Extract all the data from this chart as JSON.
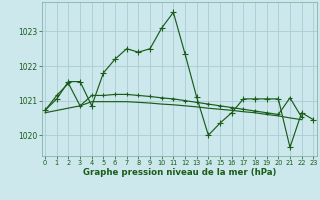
{
  "title": "Graphe pression niveau de la mer (hPa)",
  "background_color": "#cce8ec",
  "grid_color": "#aaccd4",
  "line_color": "#1a5c1a",
  "x_ticks": [
    0,
    1,
    2,
    3,
    4,
    5,
    6,
    7,
    8,
    9,
    10,
    11,
    12,
    13,
    14,
    15,
    16,
    17,
    18,
    19,
    20,
    21,
    22,
    23
  ],
  "y_ticks": [
    1020,
    1021,
    1022,
    1023
  ],
  "ylim": [
    1019.4,
    1023.85
  ],
  "xlim": [
    -0.3,
    23.3
  ],
  "series1_x": [
    0,
    1,
    2,
    3,
    4,
    5,
    6,
    7,
    8,
    9,
    10,
    11,
    12,
    13,
    14,
    15,
    16,
    17,
    18,
    19,
    20,
    21,
    22,
    23
  ],
  "series1_y": [
    1020.72,
    1021.05,
    1021.55,
    1021.55,
    1020.85,
    1021.8,
    1022.2,
    1022.5,
    1022.4,
    1022.5,
    1023.1,
    1023.55,
    1022.35,
    1021.1,
    1020.0,
    1020.35,
    1020.65,
    1021.05,
    1021.05,
    1021.05,
    1021.05,
    1019.65,
    1020.65,
    1020.45
  ],
  "series2_x": [
    0,
    1,
    2,
    3,
    4,
    5,
    6,
    7,
    8,
    9,
    10,
    11,
    12,
    13,
    14,
    15,
    16,
    17,
    18,
    19,
    20,
    21,
    22
  ],
  "series2_y": [
    1020.72,
    1021.15,
    1021.5,
    1020.85,
    1021.15,
    1021.15,
    1021.18,
    1021.18,
    1021.15,
    1021.12,
    1021.08,
    1021.05,
    1021.0,
    1020.95,
    1020.9,
    1020.85,
    1020.8,
    1020.75,
    1020.7,
    1020.65,
    1020.6,
    1021.08,
    1020.52
  ],
  "series3_x": [
    0,
    3,
    4,
    5,
    6,
    7,
    8,
    9,
    10,
    11,
    12,
    13,
    14,
    15,
    16,
    17,
    18,
    19,
    20,
    21,
    22
  ],
  "series3_y": [
    1020.65,
    1020.85,
    1020.97,
    1020.97,
    1020.97,
    1020.97,
    1020.95,
    1020.93,
    1020.9,
    1020.88,
    1020.85,
    1020.82,
    1020.78,
    1020.75,
    1020.72,
    1020.68,
    1020.65,
    1020.6,
    1020.56,
    1020.5,
    1020.45
  ]
}
